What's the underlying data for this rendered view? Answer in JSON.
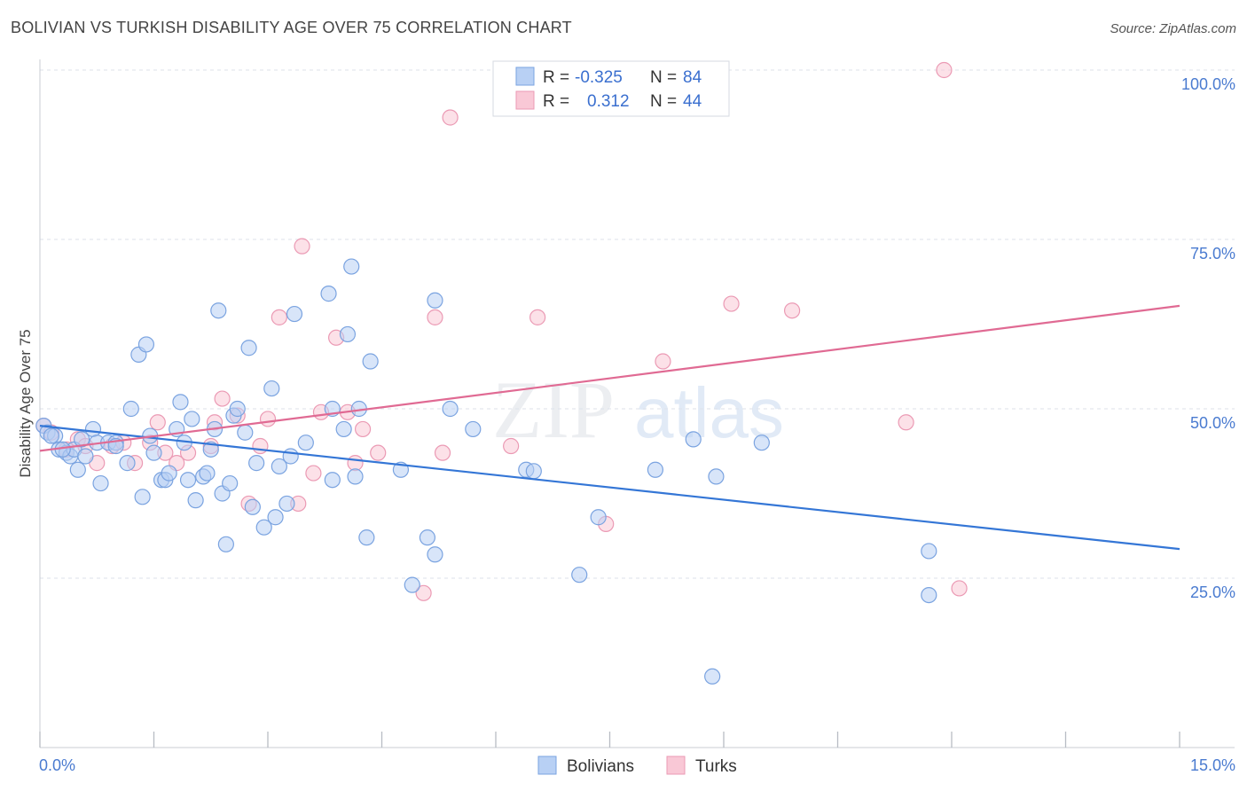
{
  "title": "BOLIVIAN VS TURKISH DISABILITY AGE OVER 75 CORRELATION CHART",
  "source": "Source: ZipAtlas.com",
  "watermark": {
    "zip": "ZIP",
    "atlas": "atlas"
  },
  "legend": {
    "rows": [
      {
        "r_label": "R =",
        "r_value": "-0.325",
        "n_label": "N =",
        "n_value": "84"
      },
      {
        "r_label": "R =",
        "r_value": "0.312",
        "n_label": "N =",
        "n_value": "44"
      }
    ]
  },
  "bottom_legend": [
    "Bolivians",
    "Turks"
  ],
  "colors": {
    "bolivians_fill": "#b8d0f4",
    "bolivians_stroke": "#7aa3e0",
    "bolivians_line": "#3476d6",
    "turks_fill": "#f9c8d6",
    "turks_stroke": "#eb9ab4",
    "turks_line": "#e06a93",
    "grid": "#dde2ea",
    "tick_text": "#4a7bd0"
  },
  "chart_data": {
    "type": "scatter",
    "title": "BOLIVIAN VS TURKISH DISABILITY AGE OVER 75 CORRELATION CHART",
    "xlabel": "",
    "ylabel": "Disability Age Over 75",
    "xlim": [
      0,
      15
    ],
    "ylim": [
      0,
      105
    ],
    "x_tick_labels": [
      "0.0%",
      "15.0%"
    ],
    "y_ticks": [
      25,
      50,
      75,
      100
    ],
    "y_tick_labels": [
      "25.0%",
      "50.0%",
      "75.0%",
      "100.0%"
    ],
    "grid": true,
    "legend_position": "top-center",
    "series": [
      {
        "name": "Bolivians",
        "r": -0.325,
        "n": 84,
        "trend": {
          "x": [
            0,
            15
          ],
          "y": [
            47.5,
            29.3
          ]
        },
        "points": [
          [
            0.05,
            47.5
          ],
          [
            0.1,
            46.5
          ],
          [
            0.2,
            46
          ],
          [
            0.25,
            44
          ],
          [
            0.35,
            43.5
          ],
          [
            0.4,
            43
          ],
          [
            0.5,
            41
          ],
          [
            0.45,
            44
          ],
          [
            0.6,
            43
          ],
          [
            0.7,
            47
          ],
          [
            0.75,
            45
          ],
          [
            0.8,
            39
          ],
          [
            0.9,
            45
          ],
          [
            1.0,
            45
          ],
          [
            1.15,
            42
          ],
          [
            1.2,
            50
          ],
          [
            1.3,
            58
          ],
          [
            1.35,
            37
          ],
          [
            1.4,
            59.5
          ],
          [
            1.45,
            46
          ],
          [
            1.5,
            43.5
          ],
          [
            1.6,
            39.5
          ],
          [
            1.65,
            39.5
          ],
          [
            1.7,
            40.5
          ],
          [
            1.8,
            47
          ],
          [
            1.85,
            51
          ],
          [
            1.9,
            45
          ],
          [
            1.95,
            39.5
          ],
          [
            2.0,
            48.5
          ],
          [
            2.05,
            36.5
          ],
          [
            2.15,
            40
          ],
          [
            2.2,
            40.5
          ],
          [
            2.25,
            44
          ],
          [
            2.3,
            47
          ],
          [
            2.35,
            64.5
          ],
          [
            2.4,
            37.5
          ],
          [
            2.45,
            30
          ],
          [
            2.5,
            39
          ],
          [
            2.55,
            49
          ],
          [
            2.6,
            50
          ],
          [
            2.7,
            46.5
          ],
          [
            2.75,
            59
          ],
          [
            2.8,
            35.5
          ],
          [
            2.85,
            42
          ],
          [
            2.95,
            32.5
          ],
          [
            3.05,
            53
          ],
          [
            3.1,
            34
          ],
          [
            3.15,
            41.5
          ],
          [
            3.25,
            36
          ],
          [
            3.3,
            43
          ],
          [
            3.35,
            64
          ],
          [
            3.5,
            45
          ],
          [
            3.8,
            67
          ],
          [
            3.85,
            39.5
          ],
          [
            3.85,
            50
          ],
          [
            4.0,
            47
          ],
          [
            4.05,
            61
          ],
          [
            4.1,
            71
          ],
          [
            4.15,
            40
          ],
          [
            4.2,
            50
          ],
          [
            4.3,
            31
          ],
          [
            4.35,
            57
          ],
          [
            4.75,
            41
          ],
          [
            4.9,
            24
          ],
          [
            5.1,
            31
          ],
          [
            5.2,
            66
          ],
          [
            5.2,
            28.5
          ],
          [
            5.4,
            50
          ],
          [
            5.7,
            47
          ],
          [
            6.4,
            41
          ],
          [
            6.5,
            40.8
          ],
          [
            7.1,
            25.5
          ],
          [
            7.35,
            34
          ],
          [
            8.1,
            41
          ],
          [
            8.6,
            45.5
          ],
          [
            8.9,
            40
          ],
          [
            9.5,
            45
          ],
          [
            11.7,
            29
          ],
          [
            11.7,
            22.5
          ],
          [
            8.85,
            10.5
          ],
          [
            0.15,
            46
          ],
          [
            0.3,
            44
          ],
          [
            0.55,
            45.5
          ],
          [
            1.0,
            44.5
          ]
        ]
      },
      {
        "name": "Turks",
        "r": 0.312,
        "n": 44,
        "trend": {
          "x": [
            0,
            15
          ],
          "y": [
            43.8,
            65.2
          ]
        },
        "points": [
          [
            0.05,
            47.5
          ],
          [
            0.15,
            46.5
          ],
          [
            0.35,
            44
          ],
          [
            0.5,
            45.5
          ],
          [
            0.6,
            44.5
          ],
          [
            0.75,
            42
          ],
          [
            0.95,
            44.5
          ],
          [
            1.1,
            45
          ],
          [
            1.25,
            42
          ],
          [
            1.45,
            45
          ],
          [
            1.55,
            48
          ],
          [
            1.65,
            43.5
          ],
          [
            1.8,
            42
          ],
          [
            1.95,
            43.5
          ],
          [
            2.25,
            44.5
          ],
          [
            2.3,
            48
          ],
          [
            2.4,
            51.5
          ],
          [
            2.6,
            49
          ],
          [
            2.75,
            36
          ],
          [
            2.9,
            44.5
          ],
          [
            3.0,
            48.5
          ],
          [
            3.15,
            63.5
          ],
          [
            3.4,
            36
          ],
          [
            3.45,
            74
          ],
          [
            3.6,
            40.5
          ],
          [
            3.7,
            49.5
          ],
          [
            3.9,
            60.5
          ],
          [
            4.05,
            49.5
          ],
          [
            4.15,
            42
          ],
          [
            4.25,
            47
          ],
          [
            4.45,
            43.5
          ],
          [
            5.2,
            63.5
          ],
          [
            5.05,
            22.8
          ],
          [
            5.3,
            43.5
          ],
          [
            5.4,
            93
          ],
          [
            6.2,
            44.5
          ],
          [
            6.55,
            63.5
          ],
          [
            7.45,
            33
          ],
          [
            8.2,
            57
          ],
          [
            9.1,
            65.5
          ],
          [
            9.9,
            64.5
          ],
          [
            11.4,
            48
          ],
          [
            11.9,
            100
          ],
          [
            12.1,
            23.5
          ]
        ]
      }
    ]
  }
}
